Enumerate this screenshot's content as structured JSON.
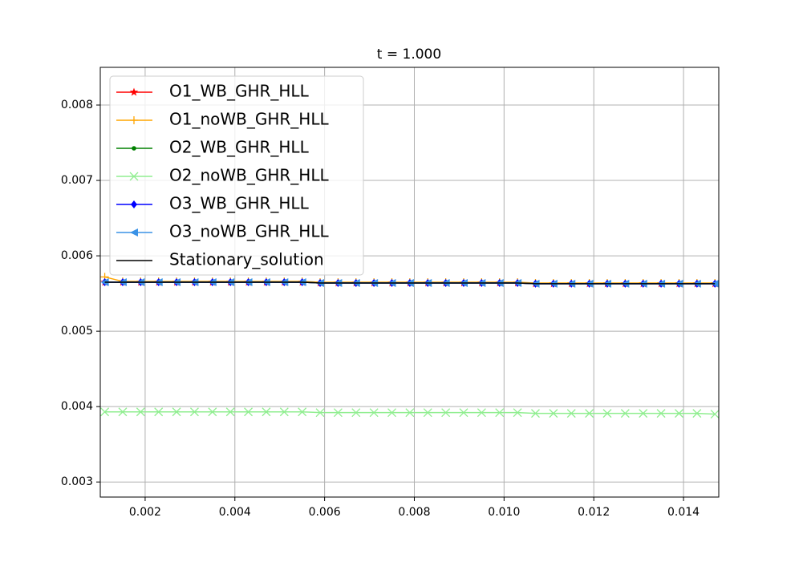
{
  "chart_data": {
    "type": "line",
    "title": "t = 1.000",
    "x": [
      0.0011,
      0.0015,
      0.0019,
      0.0023,
      0.0027,
      0.0031,
      0.0035,
      0.0039,
      0.0043,
      0.0047,
      0.0051,
      0.0055,
      0.0059,
      0.0063,
      0.0067,
      0.0071,
      0.0075,
      0.0079,
      0.0083,
      0.0087,
      0.0091,
      0.0095,
      0.0099,
      0.0103,
      0.0107,
      0.0111,
      0.0115,
      0.0119,
      0.0123,
      0.0127,
      0.0131,
      0.0135,
      0.0139,
      0.0143,
      0.0147
    ],
    "series": [
      {
        "name": "O1_WB_GHR_HLL",
        "color": "#ff0000",
        "marker": "star",
        "values": [
          0.00565,
          0.00565,
          0.00565,
          0.00565,
          0.00565,
          0.00565,
          0.00565,
          0.00565,
          0.00565,
          0.00565,
          0.00565,
          0.00565,
          0.00564,
          0.00564,
          0.00564,
          0.00564,
          0.00564,
          0.00564,
          0.00564,
          0.00564,
          0.00564,
          0.00564,
          0.00564,
          0.00564,
          0.00563,
          0.00563,
          0.00563,
          0.00563,
          0.00563,
          0.00563,
          0.00563,
          0.00563,
          0.00563,
          0.00563,
          0.00563
        ]
      },
      {
        "name": "O1_noWB_GHR_HLL",
        "color": "#ffa500",
        "marker": "plus",
        "values": [
          0.00572,
          0.00566,
          0.00566,
          0.00566,
          0.00566,
          0.00566,
          0.00566,
          0.00566,
          0.00566,
          0.00566,
          0.00566,
          0.00566,
          0.00565,
          0.00565,
          0.00565,
          0.00565,
          0.00565,
          0.00565,
          0.00565,
          0.00565,
          0.00565,
          0.00565,
          0.00565,
          0.00565,
          0.00564,
          0.00564,
          0.00564,
          0.00564,
          0.00564,
          0.00564,
          0.00564,
          0.00564,
          0.00564,
          0.00564,
          0.00564
        ]
      },
      {
        "name": "O2_WB_GHR_HLL",
        "color": "#008000",
        "marker": "dot",
        "values": [
          0.00565,
          0.00565,
          0.00565,
          0.00565,
          0.00565,
          0.00565,
          0.00565,
          0.00565,
          0.00565,
          0.00565,
          0.00565,
          0.00565,
          0.00564,
          0.00564,
          0.00564,
          0.00564,
          0.00564,
          0.00564,
          0.00564,
          0.00564,
          0.00564,
          0.00564,
          0.00564,
          0.00564,
          0.00563,
          0.00563,
          0.00563,
          0.00563,
          0.00563,
          0.00563,
          0.00563,
          0.00563,
          0.00563,
          0.00563,
          0.00563
        ]
      },
      {
        "name": "O2_noWB_GHR_HLL",
        "color": "#90ee90",
        "marker": "x",
        "values": [
          0.00393,
          0.00393,
          0.00393,
          0.00393,
          0.00393,
          0.00393,
          0.00393,
          0.00393,
          0.00393,
          0.00393,
          0.00393,
          0.00393,
          0.00392,
          0.00392,
          0.00392,
          0.00392,
          0.00392,
          0.00392,
          0.00392,
          0.00392,
          0.00392,
          0.00392,
          0.00392,
          0.00392,
          0.00391,
          0.00391,
          0.00391,
          0.00391,
          0.00391,
          0.00391,
          0.00391,
          0.00391,
          0.00391,
          0.00391,
          0.0039
        ]
      },
      {
        "name": "O3_WB_GHR_HLL",
        "color": "#0000ff",
        "marker": "diamond",
        "values": [
          0.00565,
          0.00565,
          0.00565,
          0.00565,
          0.00565,
          0.00565,
          0.00565,
          0.00565,
          0.00565,
          0.00565,
          0.00565,
          0.00565,
          0.00564,
          0.00564,
          0.00564,
          0.00564,
          0.00564,
          0.00564,
          0.00564,
          0.00564,
          0.00564,
          0.00564,
          0.00564,
          0.00564,
          0.00563,
          0.00563,
          0.00563,
          0.00563,
          0.00563,
          0.00563,
          0.00563,
          0.00563,
          0.00563,
          0.00563,
          0.00563
        ]
      },
      {
        "name": "O3_noWB_GHR_HLL",
        "color": "#3a92e6",
        "marker": "triangle-left",
        "values": [
          0.00565,
          0.00565,
          0.00565,
          0.00565,
          0.00565,
          0.00565,
          0.00565,
          0.00565,
          0.00565,
          0.00565,
          0.00565,
          0.00565,
          0.00564,
          0.00564,
          0.00564,
          0.00564,
          0.00564,
          0.00564,
          0.00564,
          0.00564,
          0.00564,
          0.00564,
          0.00564,
          0.00564,
          0.00563,
          0.00563,
          0.00563,
          0.00563,
          0.00563,
          0.00563,
          0.00563,
          0.00563,
          0.00563,
          0.00563,
          0.00563
        ]
      },
      {
        "name": "Stationary_solution",
        "color": "#000000",
        "marker": "none",
        "values": [
          0.00565,
          0.00565,
          0.00565,
          0.00565,
          0.00565,
          0.00565,
          0.00565,
          0.00565,
          0.00565,
          0.00565,
          0.00565,
          0.00565,
          0.00564,
          0.00564,
          0.00564,
          0.00564,
          0.00564,
          0.00564,
          0.00564,
          0.00564,
          0.00564,
          0.00564,
          0.00564,
          0.00564,
          0.00563,
          0.00563,
          0.00563,
          0.00563,
          0.00563,
          0.00563,
          0.00563,
          0.00563,
          0.00563,
          0.00563,
          0.00563
        ]
      }
    ],
    "xlim": [
      0.001,
      0.014786
    ],
    "ylim": [
      0.0028,
      0.0085
    ],
    "xticks": [
      0.002,
      0.004,
      0.006,
      0.008,
      {
        "value": 0.01,
        "label": "0.010"
      },
      0.012,
      0.014
    ],
    "yticks": [
      0.003,
      0.004,
      0.005,
      0.006,
      0.007,
      0.008
    ],
    "grid": true,
    "legend": "upper-left"
  }
}
